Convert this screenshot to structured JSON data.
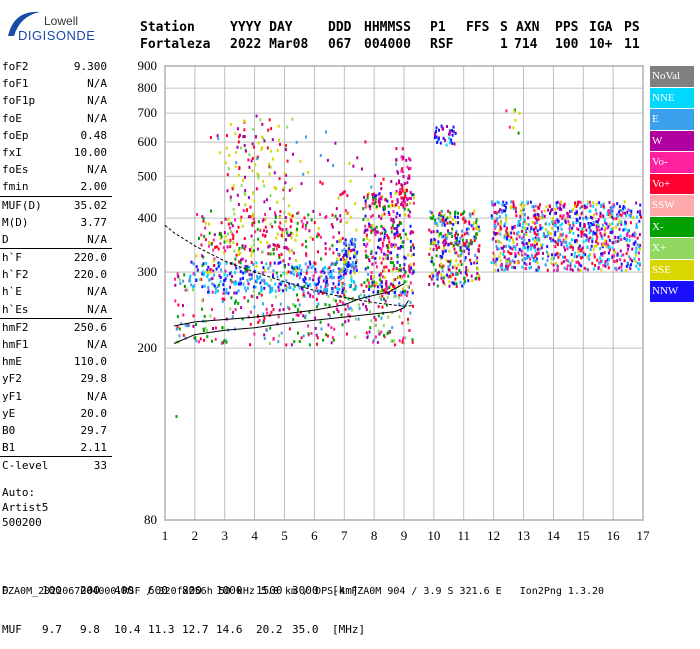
{
  "logo": {
    "company": "Lowell",
    "product": "DIGISONDE"
  },
  "header": {
    "labels": [
      "Station",
      "YYYY DAY",
      "DDD",
      "HHMMSS",
      "P1",
      "FFS",
      "S",
      "AXN",
      "PPS",
      "IGA",
      "PS"
    ],
    "values": [
      "Fortaleza",
      "2022 Mar08",
      "067",
      "004000",
      "RSF",
      "1",
      "714",
      "100",
      "10+",
      "11"
    ]
  },
  "parameters": [
    [
      {
        "name": "foF2",
        "value": "9.300"
      },
      {
        "name": "foF1",
        "value": "N/A"
      },
      {
        "name": "foF1p",
        "value": "N/A"
      },
      {
        "name": "foE",
        "value": "N/A"
      },
      {
        "name": "foEp",
        "value": "0.48"
      },
      {
        "name": "fxI",
        "value": "10.00"
      },
      {
        "name": "foEs",
        "value": "N/A"
      },
      {
        "name": "fmin",
        "value": "2.00"
      }
    ],
    [
      {
        "name": "MUF(D)",
        "value": "35.02"
      },
      {
        "name": "M(D)",
        "value": "3.77"
      },
      {
        "name": "D",
        "value": "N/A"
      }
    ],
    [
      {
        "name": "h`F",
        "value": "220.0"
      },
      {
        "name": "h`F2",
        "value": "220.0"
      },
      {
        "name": "h`E",
        "value": "N/A"
      },
      {
        "name": "h`Es",
        "value": "N/A"
      }
    ],
    [
      {
        "name": "hmF2",
        "value": "250.6"
      },
      {
        "name": "hmF1",
        "value": "N/A"
      },
      {
        "name": "hmE",
        "value": "110.0"
      },
      {
        "name": "yF2",
        "value": "29.8"
      },
      {
        "name": "yF1",
        "value": "N/A"
      },
      {
        "name": "yE",
        "value": "20.0"
      },
      {
        "name": "B0",
        "value": "29.7"
      },
      {
        "name": "B1",
        "value": "2.11"
      }
    ],
    [
      {
        "name": "C-level",
        "value": "33"
      }
    ]
  ],
  "auto": {
    "line1": "Auto:",
    "line2": "Artist5",
    "line3": "500200"
  },
  "legend": [
    {
      "label": "NoVal",
      "color": "#808080"
    },
    {
      "label": "NNE",
      "color": "#00d8ff"
    },
    {
      "label": "E",
      "color": "#3aa0ee"
    },
    {
      "label": "W",
      "color": "#b000a0"
    },
    {
      "label": "Vo-",
      "color": "#ff20a0"
    },
    {
      "label": "Vo+",
      "color": "#ff0030"
    },
    {
      "label": "SSW",
      "color": "#ffaaaa"
    },
    {
      "label": "X-",
      "color": "#00a000"
    },
    {
      "label": "X+",
      "color": "#90d860"
    },
    {
      "label": "SSE",
      "color": "#d8d800"
    },
    {
      "label": "NNW",
      "color": "#1a10ff"
    }
  ],
  "chart_data": {
    "type": "scatter",
    "title": "",
    "xlabel": "",
    "ylabel": "",
    "xlim": [
      1,
      17
    ],
    "ylim": [
      80,
      900
    ],
    "x_ticks": [
      "1",
      "2",
      "3",
      "4",
      "5",
      "6",
      "7",
      "8",
      "9",
      "10",
      "11",
      "12",
      "13",
      "14",
      "15",
      "16",
      "17"
    ],
    "y_ticks": [
      "80",
      "200",
      "300",
      "400",
      "500",
      "600",
      "700",
      "800",
      "900"
    ],
    "grid": true,
    "y_scale": "log",
    "trace_f": [
      {
        "x": 1.3,
        "y": 205
      },
      {
        "x": 2.0,
        "y": 215
      },
      {
        "x": 3.0,
        "y": 220
      },
      {
        "x": 4.0,
        "y": 223
      },
      {
        "x": 5.0,
        "y": 228
      },
      {
        "x": 6.0,
        "y": 232
      },
      {
        "x": 7.0,
        "y": 236
      },
      {
        "x": 8.0,
        "y": 240
      },
      {
        "x": 8.7,
        "y": 243
      },
      {
        "x": 9.0,
        "y": 248
      },
      {
        "x": 9.15,
        "y": 258
      }
    ],
    "trace_profile": [
      {
        "x": 1.0,
        "y": 385
      },
      {
        "x": 1.3,
        "y": 370
      },
      {
        "x": 2.0,
        "y": 345
      },
      {
        "x": 3.0,
        "y": 318
      },
      {
        "x": 4.0,
        "y": 300
      },
      {
        "x": 5.0,
        "y": 285
      },
      {
        "x": 6.0,
        "y": 272
      },
      {
        "x": 7.0,
        "y": 262
      },
      {
        "x": 8.0,
        "y": 255
      },
      {
        "x": 9.0,
        "y": 250
      },
      {
        "x": 9.3,
        "y": 251
      }
    ],
    "trace_muf": [
      {
        "x": 1.3,
        "y": 225
      },
      {
        "x": 2.0,
        "y": 230
      },
      {
        "x": 3.0,
        "y": 233
      },
      {
        "x": 4.0,
        "y": 236
      },
      {
        "x": 5.0,
        "y": 240
      },
      {
        "x": 6.0,
        "y": 245
      },
      {
        "x": 7.0,
        "y": 252
      },
      {
        "x": 7.5,
        "y": 260
      },
      {
        "x": 8.0,
        "y": 265
      },
      {
        "x": 8.5,
        "y": 270
      },
      {
        "x": 9.0,
        "y": 282
      }
    ],
    "echo_clusters": [
      {
        "x0": 1.3,
        "x1": 9.3,
        "y0": 205,
        "y1": 300,
        "n": 420,
        "colors": [
          "#ff0030",
          "#ff20a0",
          "#00a000",
          "#3aa0ee",
          "#90d860",
          "#b000a0"
        ]
      },
      {
        "x0": 1.8,
        "x1": 7.4,
        "y0": 270,
        "y1": 320,
        "n": 260,
        "colors": [
          "#3aa0ee",
          "#00d8ff",
          "#1a10ff"
        ]
      },
      {
        "x0": 2.0,
        "x1": 7.4,
        "y0": 300,
        "y1": 420,
        "n": 240,
        "colors": [
          "#b000a0",
          "#ff20a0",
          "#d8d800",
          "#00a000",
          "#ff0030"
        ]
      },
      {
        "x0": 3.0,
        "x1": 5.3,
        "y0": 330,
        "y1": 700,
        "n": 170,
        "colors": [
          "#d8d800",
          "#90d860",
          "#b000a0",
          "#ff0030"
        ]
      },
      {
        "x0": 6.7,
        "x1": 7.4,
        "y0": 300,
        "y1": 360,
        "n": 80,
        "colors": [
          "#d8d800",
          "#1a10ff",
          "#3aa0ee"
        ]
      },
      {
        "x0": 7.6,
        "x1": 9.3,
        "y0": 270,
        "y1": 460,
        "n": 330,
        "colors": [
          "#ff0030",
          "#ff20a0",
          "#b000a0",
          "#00a000",
          "#1a10ff",
          "#d8d800"
        ]
      },
      {
        "x0": 8.7,
        "x1": 9.2,
        "y0": 430,
        "y1": 560,
        "n": 60,
        "colors": [
          "#ff20a0",
          "#ff0030",
          "#b000a0"
        ]
      },
      {
        "x0": 9.8,
        "x1": 11.5,
        "y0": 280,
        "y1": 420,
        "n": 300,
        "colors": [
          "#b000a0",
          "#1a10ff",
          "#ff0030",
          "#d8d800",
          "#00a000",
          "#3aa0ee"
        ]
      },
      {
        "x0": 10.0,
        "x1": 10.7,
        "y0": 590,
        "y1": 665,
        "n": 35,
        "colors": [
          "#1a10ff",
          "#b000a0",
          "#00d8ff"
        ]
      },
      {
        "x0": 11.9,
        "x1": 16.9,
        "y0": 305,
        "y1": 440,
        "n": 900,
        "colors": [
          "#1a10ff",
          "#b000a0",
          "#00d8ff",
          "#3aa0ee",
          "#ff0030",
          "#d8d800",
          "#ff20a0"
        ]
      },
      {
        "x0": 12.3,
        "x1": 12.9,
        "y0": 630,
        "y1": 730,
        "n": 8,
        "colors": [
          "#ff20a0",
          "#d8d800",
          "#00a000"
        ]
      },
      {
        "x0": 2.5,
        "x1": 9.0,
        "y0": 420,
        "y1": 640,
        "n": 60,
        "colors": [
          "#d8d800",
          "#b000a0",
          "#3aa0ee",
          "#ff0030"
        ]
      }
    ]
  },
  "footer": {
    "row_d": [
      "D",
      "100",
      "200",
      "400",
      "600",
      "800",
      "1000",
      "1500",
      "3000",
      "[km]"
    ],
    "row_muf": [
      "MUF",
      "9.7",
      "9.8",
      "10.4",
      "11.3",
      "12.7",
      "14.6",
      "20.2",
      "35.0",
      "[MHz]"
    ],
    "file_line": "FZA0M_2022067004000.RSF / 320fx256h 50 kHz 5.0 km / DPS-4 FZA0M 904 / 3.9 S 321.6 E   Ion2Png 1.3.20"
  }
}
